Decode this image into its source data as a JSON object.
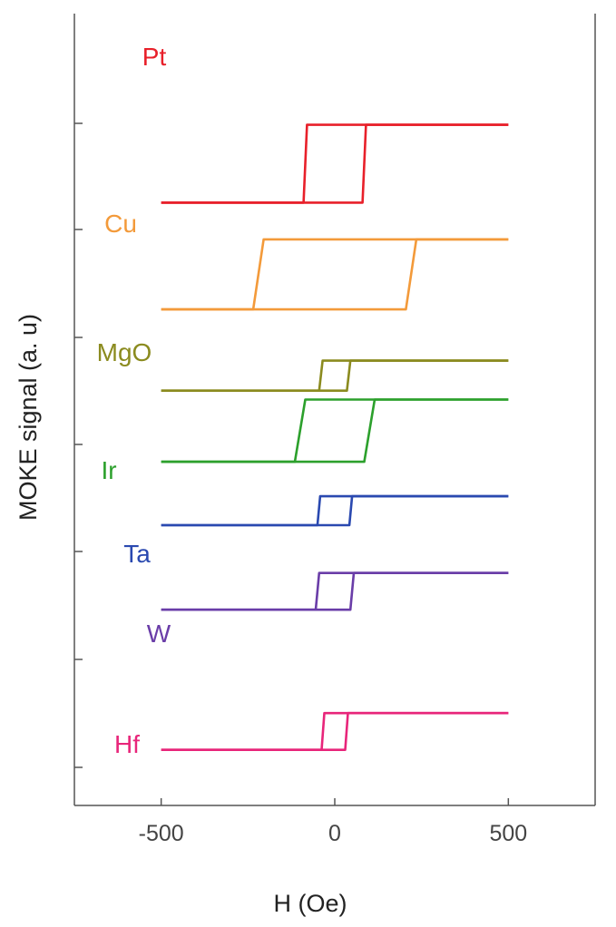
{
  "chart_data": {
    "type": "line",
    "title": "",
    "xlabel": "H (Oe)",
    "ylabel": "MOKE signal (a. u)",
    "xlim": [
      -750,
      750
    ],
    "x_ticks": [
      -500,
      0,
      500
    ],
    "x_tick_labels": [
      "-500",
      "0",
      "500"
    ],
    "y_ticks_count": 7,
    "grid": false,
    "legend": "inline labels left of curves",
    "x_field_range": [
      -500,
      500
    ],
    "series": [
      {
        "name": "Pt",
        "color": "#e8202a",
        "coercivity_Oe": 90,
        "switch_width_Oe": 10,
        "signal_low": 5.42,
        "signal_high": 6.12
      },
      {
        "name": "Cu",
        "color": "#f39a3a",
        "coercivity_Oe": 235,
        "switch_width_Oe": 30,
        "signal_low": 4.46,
        "signal_high": 5.09
      },
      {
        "name": "MgO",
        "color": "#8b8b1f",
        "coercivity_Oe": 45,
        "switch_width_Oe": 10,
        "signal_low": 3.73,
        "signal_high": 4.0
      },
      {
        "name": "Ir",
        "color": "#2ca02c",
        "coercivity_Oe": 115,
        "switch_width_Oe": 30,
        "signal_low": 3.09,
        "signal_high": 3.65
      },
      {
        "name": "Ta",
        "color": "#2a49b0",
        "coercivity_Oe": 50,
        "switch_width_Oe": 8,
        "signal_low": 2.52,
        "signal_high": 2.78
      },
      {
        "name": "W",
        "color": "#6a3da8",
        "coercivity_Oe": 55,
        "switch_width_Oe": 10,
        "signal_low": 1.76,
        "signal_high": 2.09
      },
      {
        "name": "Hf",
        "color": "#e8257a",
        "coercivity_Oe": 38,
        "switch_width_Oe": 8,
        "signal_low": 0.5,
        "signal_high": 0.83
      }
    ]
  }
}
